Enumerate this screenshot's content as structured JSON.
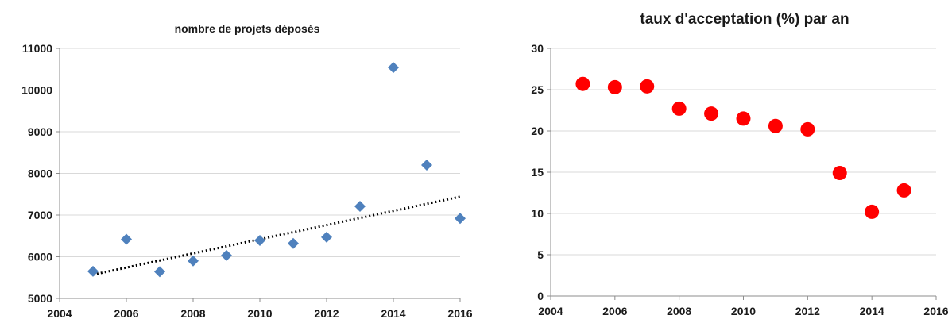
{
  "chart_data": [
    {
      "type": "scatter",
      "title": "nombre de projets déposés",
      "xlabel": "",
      "ylabel": "",
      "xlim": [
        2004,
        2016
      ],
      "ylim": [
        5000,
        11000
      ],
      "x_ticks": [
        2004,
        2006,
        2008,
        2010,
        2012,
        2014,
        2016
      ],
      "y_ticks": [
        5000,
        6000,
        7000,
        8000,
        9000,
        10000,
        11000
      ],
      "grid": "horizontal",
      "marker": "diamond",
      "marker_color": "#4F81BD",
      "series": [
        {
          "x": [
            2005,
            2006,
            2007,
            2008,
            2009,
            2010,
            2011,
            2012,
            2013,
            2014,
            2015,
            2016
          ],
          "y": [
            5650,
            6420,
            5640,
            5900,
            6030,
            6390,
            6320,
            6470,
            7210,
            10540,
            8200,
            6920
          ]
        }
      ],
      "trendline": {
        "type": "linear",
        "style": "dotted",
        "color": "#000000",
        "x": [
          2005,
          2016
        ],
        "y": [
          5570,
          7440
        ]
      }
    },
    {
      "type": "scatter",
      "title": "taux d'acceptation (%) par an",
      "xlabel": "",
      "ylabel": "",
      "xlim": [
        2004,
        2016
      ],
      "ylim": [
        0,
        30
      ],
      "x_ticks": [
        2004,
        2006,
        2008,
        2010,
        2012,
        2014,
        2016
      ],
      "y_ticks": [
        0,
        5,
        10,
        15,
        20,
        25,
        30
      ],
      "grid": "horizontal",
      "marker": "circle",
      "marker_color": "#FF0000",
      "series": [
        {
          "x": [
            2005,
            2006,
            2007,
            2008,
            2009,
            2010,
            2011,
            2012,
            2013,
            2014,
            2015
          ],
          "y": [
            25.7,
            25.3,
            25.4,
            22.7,
            22.1,
            21.5,
            20.6,
            20.2,
            14.9,
            10.2,
            12.8
          ]
        }
      ]
    }
  ]
}
